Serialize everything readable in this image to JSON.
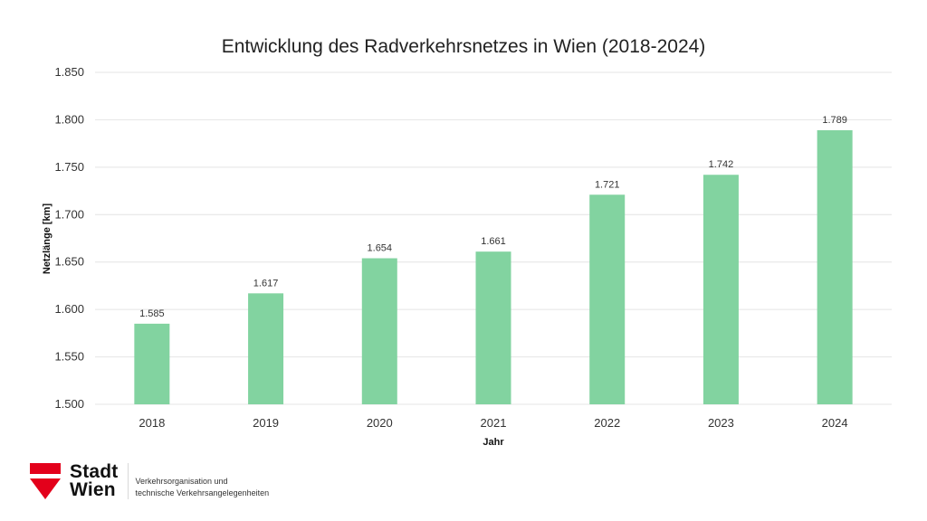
{
  "chart_data": {
    "type": "bar",
    "title": "Entwicklung des Radverkehrsnetzes in Wien (2018-2024)",
    "xlabel": "Jahr",
    "ylabel": "Netzlänge [km]",
    "categories": [
      "2018",
      "2019",
      "2020",
      "2021",
      "2022",
      "2023",
      "2024"
    ],
    "values": [
      1585,
      1617,
      1654,
      1661,
      1721,
      1742,
      1789
    ],
    "value_labels": [
      "1.585",
      "1.617",
      "1.654",
      "1.661",
      "1.721",
      "1.742",
      "1.789"
    ],
    "ylim": [
      1500,
      1850
    ],
    "yticks": [
      1500,
      1550,
      1600,
      1650,
      1700,
      1750,
      1800,
      1850
    ],
    "ytick_labels": [
      "1.500",
      "1.550",
      "1.600",
      "1.650",
      "1.700",
      "1.750",
      "1.800",
      "1.850"
    ],
    "grid": true,
    "bar_color": "#82d3a0"
  },
  "footer": {
    "logo_line1": "Stadt",
    "logo_line2": "Wien",
    "org_line1": "Verkehrsorganisation und",
    "org_line2": "technische Verkehrsangelegenheiten",
    "logo_color": "#e3001b"
  }
}
